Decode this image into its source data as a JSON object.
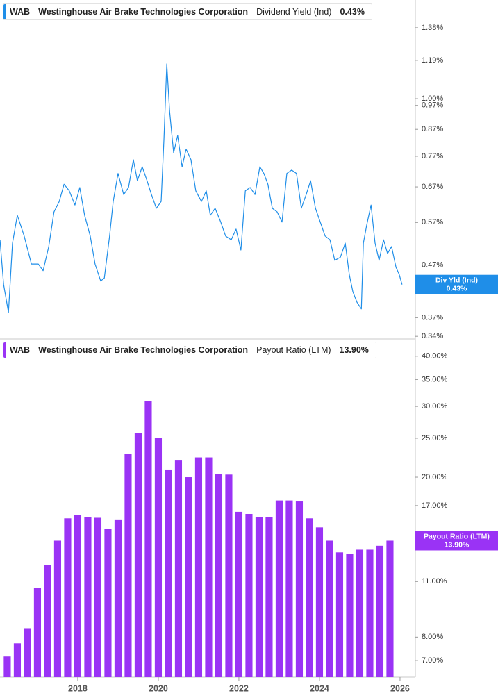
{
  "chart_data": [
    {
      "type": "line",
      "ticker": "WAB",
      "company": "Westinghouse Air Brake Technologies Corporation",
      "metric": "Dividend Yield (Ind)",
      "flag_label": "Div Yld (Ind)",
      "current_value": 0.43,
      "current_value_label": "0.43%",
      "color": "#1f8ee8",
      "log_scale": true,
      "xlim": [
        2016.07,
        2026.38
      ],
      "ylim": [
        0.337,
        1.565
      ],
      "yticks": [
        {
          "value": 1.38,
          "label": "1.38%"
        },
        {
          "value": 1.19,
          "label": "1.19%"
        },
        {
          "value": 1.0,
          "label": "1.00%"
        },
        {
          "value": 0.97,
          "label": "0.97%"
        },
        {
          "value": 0.87,
          "label": "0.87%"
        },
        {
          "value": 0.77,
          "label": "0.77%"
        },
        {
          "value": 0.67,
          "label": "0.67%"
        },
        {
          "value": 0.57,
          "label": "0.57%"
        },
        {
          "value": 0.47,
          "label": "0.47%"
        },
        {
          "value": 0.37,
          "label": "0.37%"
        },
        {
          "value": 0.34,
          "label": "0.34%"
        }
      ],
      "x": [
        2016.07,
        2016.16,
        2016.28,
        2016.38,
        2016.5,
        2016.67,
        2016.85,
        2017.02,
        2017.14,
        2017.28,
        2017.41,
        2017.54,
        2017.66,
        2017.79,
        2017.93,
        2018.05,
        2018.17,
        2018.31,
        2018.43,
        2018.57,
        2018.66,
        2018.79,
        2018.88,
        2019.0,
        2019.14,
        2019.26,
        2019.38,
        2019.48,
        2019.6,
        2019.72,
        2019.83,
        2019.95,
        2020.07,
        2020.14,
        2020.21,
        2020.28,
        2020.38,
        2020.48,
        2020.59,
        2020.69,
        2020.81,
        2020.93,
        2021.07,
        2021.19,
        2021.29,
        2021.41,
        2021.55,
        2021.67,
        2021.81,
        2021.93,
        2022.05,
        2022.16,
        2022.28,
        2022.4,
        2022.52,
        2022.62,
        2022.72,
        2022.83,
        2022.95,
        2023.07,
        2023.19,
        2023.31,
        2023.43,
        2023.55,
        2023.67,
        2023.78,
        2023.9,
        2024.02,
        2024.14,
        2024.26,
        2024.38,
        2024.52,
        2024.64,
        2024.74,
        2024.83,
        2024.93,
        2025.04,
        2025.09,
        2025.17,
        2025.28,
        2025.38,
        2025.48,
        2025.59,
        2025.69,
        2025.79,
        2025.9,
        2025.98,
        2026.05
      ],
      "values": [
        0.527,
        0.43,
        0.379,
        0.519,
        0.589,
        0.536,
        0.472,
        0.472,
        0.458,
        0.511,
        0.598,
        0.627,
        0.678,
        0.658,
        0.617,
        0.668,
        0.589,
        0.536,
        0.472,
        0.437,
        0.443,
        0.536,
        0.627,
        0.712,
        0.647,
        0.668,
        0.758,
        0.689,
        0.734,
        0.689,
        0.647,
        0.608,
        0.627,
        0.833,
        1.171,
        0.945,
        0.782,
        0.846,
        0.734,
        0.795,
        0.758,
        0.658,
        0.627,
        0.658,
        0.589,
        0.608,
        0.571,
        0.536,
        0.527,
        0.553,
        0.503,
        0.658,
        0.668,
        0.647,
        0.734,
        0.712,
        0.678,
        0.608,
        0.598,
        0.571,
        0.712,
        0.723,
        0.712,
        0.608,
        0.647,
        0.689,
        0.608,
        0.571,
        0.536,
        0.527,
        0.48,
        0.487,
        0.519,
        0.45,
        0.416,
        0.397,
        0.385,
        0.519,
        0.562,
        0.617,
        0.519,
        0.48,
        0.527,
        0.495,
        0.511,
        0.465,
        0.45,
        0.43
      ]
    },
    {
      "type": "bar",
      "ticker": "WAB",
      "company": "Westinghouse Air Brake Technologies Corporation",
      "metric": "Payout Ratio (LTM)",
      "flag_label": "Payout Ratio (LTM)",
      "current_value": 13.9,
      "current_value_label": "13.90%",
      "color": "#9a33f5",
      "log_scale": true,
      "xlim": [
        2016.07,
        2026.38
      ],
      "ylim": [
        6.36,
        43.8
      ],
      "xticks": [
        2018,
        2020,
        2022,
        2024,
        2026
      ],
      "yticks": [
        {
          "value": 40,
          "label": "40.00%"
        },
        {
          "value": 35,
          "label": "35.00%"
        },
        {
          "value": 30,
          "label": "30.00%"
        },
        {
          "value": 25,
          "label": "25.00%"
        },
        {
          "value": 20,
          "label": "20.00%"
        },
        {
          "value": 17,
          "label": "17.00%"
        },
        {
          "value": 11,
          "label": "11.00%"
        },
        {
          "value": 8,
          "label": "8.00%"
        },
        {
          "value": 7,
          "label": "7.00%"
        }
      ],
      "x": [
        2016.25,
        2016.5,
        2016.75,
        2017.0,
        2017.25,
        2017.5,
        2017.75,
        2018.0,
        2018.25,
        2018.5,
        2018.75,
        2019.0,
        2019.25,
        2019.5,
        2019.75,
        2020.0,
        2020.25,
        2020.5,
        2020.75,
        2021.0,
        2021.25,
        2021.5,
        2021.75,
        2022.0,
        2022.25,
        2022.5,
        2022.75,
        2023.0,
        2023.25,
        2023.5,
        2023.75,
        2024.0,
        2024.25,
        2024.5,
        2024.75,
        2025.0,
        2025.25,
        2025.5,
        2025.75
      ],
      "values": [
        7.16,
        7.72,
        8.42,
        10.6,
        12.1,
        13.9,
        15.8,
        16.1,
        15.9,
        15.85,
        14.9,
        15.7,
        22.9,
        25.8,
        30.9,
        25.0,
        20.9,
        22.0,
        20.0,
        22.4,
        22.4,
        20.4,
        20.3,
        16.4,
        16.2,
        15.9,
        15.9,
        17.5,
        17.5,
        17.4,
        15.8,
        15.0,
        13.9,
        13.0,
        12.9,
        13.2,
        13.2,
        13.5,
        13.9
      ]
    }
  ]
}
